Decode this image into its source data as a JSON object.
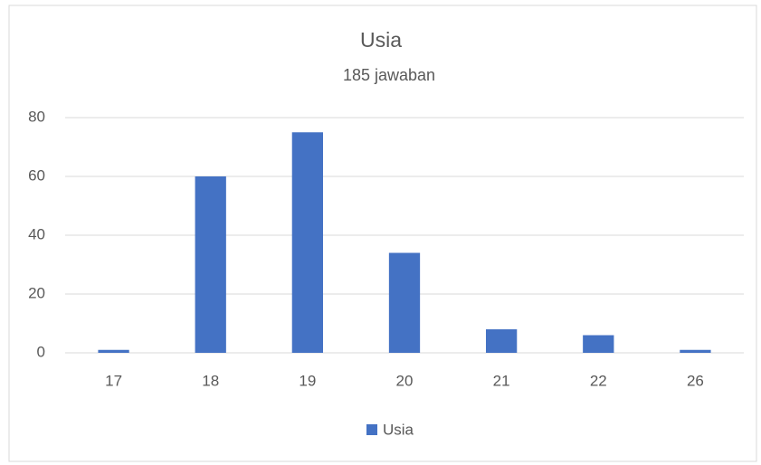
{
  "chart_data": {
    "type": "bar",
    "title": "Usia",
    "subtitle": "185 jawaban",
    "categories": [
      "17",
      "18",
      "19",
      "20",
      "21",
      "22",
      "26"
    ],
    "series": [
      {
        "name": "Usia",
        "color": "#4472c4",
        "values": [
          1,
          60,
          75,
          34,
          8,
          6,
          1
        ]
      }
    ],
    "ylim": [
      0,
      80
    ],
    "yticks": [
      0,
      20,
      40,
      60,
      80
    ],
    "grid": true,
    "legend": "bottom"
  }
}
